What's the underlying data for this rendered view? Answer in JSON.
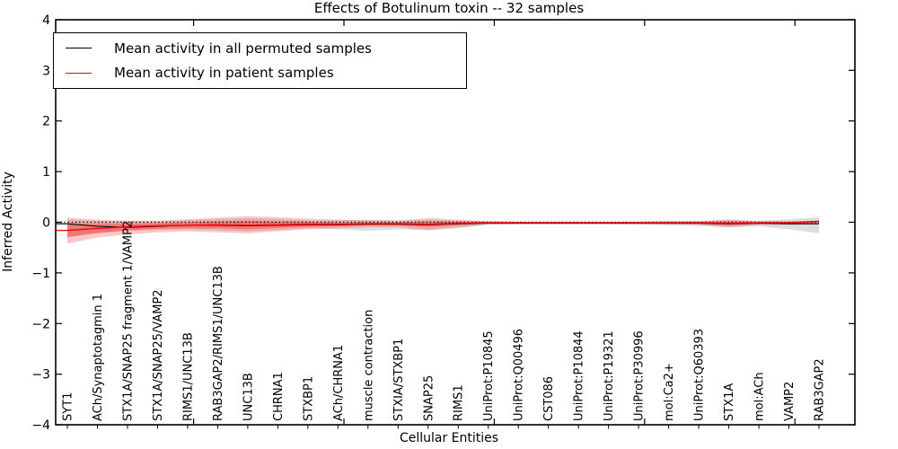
{
  "title": "Effects of Botulinum toxin -- 32 samples",
  "legend": {
    "items": [
      {
        "label": "Mean activity in all permuted samples",
        "color": "#000000"
      },
      {
        "label": "Mean activity in patient samples",
        "color": "#ff0000"
      }
    ]
  },
  "chart_data": {
    "type": "line",
    "title": "Effects of Botulinum toxin -- 32 samples",
    "xlabel": "Cellular Entities",
    "ylabel": "Inferred Activity",
    "ylim": [
      -4,
      4
    ],
    "grid": false,
    "legend_position": "upper left",
    "ytick_labels": [
      "4",
      "3",
      "2",
      "1",
      "0",
      "−1",
      "−2",
      "−3",
      "−4"
    ],
    "ytick_values": [
      4,
      3,
      2,
      1,
      0,
      -1,
      -2,
      -3,
      -4
    ],
    "xticks_major_positions": [
      4.2,
      9.2,
      14.2,
      19.2,
      24.2
    ],
    "zero_reference_line": 0,
    "categories": [
      "SYT1",
      "ACh/Synaptotagmin 1",
      "STX1A/SNAP25 fragment 1/VAMP2",
      "STX1A/SNAP25/VAMP2",
      "RIMS1/UNC13B",
      "RAB3GAP2/RIMS1/UNC13B",
      "UNC13B",
      "CHRNA1",
      "STXBP1",
      "ACh/CHRNA1",
      "muscle contraction",
      "STXIA/STXBP1",
      "SNAP25",
      "RIMS1",
      "UniProt:P10845",
      "UniProt:Q00496",
      "CST086",
      "UniProt:P10844",
      "UniProt:P19321",
      "UniProt:P30996",
      "mol:Ca2+",
      "UniProt:Q60393",
      "STX1A",
      "mol:ACh",
      "VAMP2",
      "RAB3GAP2"
    ],
    "series": [
      {
        "name": "Mean activity in all permuted samples",
        "color": "#000000",
        "width": 1.1,
        "values": [
          -0.03,
          -0.08,
          -0.1,
          -0.08,
          -0.06,
          -0.06,
          -0.07,
          -0.06,
          -0.05,
          -0.05,
          -0.04,
          -0.04,
          -0.05,
          -0.03,
          -0.02,
          -0.02,
          -0.02,
          -0.02,
          -0.02,
          -0.02,
          -0.02,
          -0.02,
          -0.03,
          -0.02,
          -0.03,
          -0.03
        ]
      },
      {
        "name": "Mean activity in patient samples",
        "color": "#ff0000",
        "width": 1.4,
        "values": [
          -0.16,
          -0.12,
          -0.09,
          -0.07,
          -0.06,
          -0.05,
          -0.06,
          -0.05,
          -0.04,
          -0.04,
          -0.03,
          -0.03,
          -0.04,
          -0.02,
          -0.01,
          -0.01,
          -0.01,
          -0.01,
          -0.01,
          -0.01,
          -0.01,
          -0.01,
          -0.02,
          -0.01,
          -0.01,
          0.02
        ]
      }
    ],
    "bands": [
      {
        "name": "permuted-range",
        "color": "#888888",
        "opacity": 0.28,
        "upper": [
          0.05,
          0.03,
          0.02,
          0.02,
          0.04,
          0.06,
          0.08,
          0.06,
          0.04,
          0.04,
          0.05,
          0.04,
          0.05,
          0.04,
          0.02,
          0.01,
          0.01,
          0.01,
          0.01,
          0.01,
          0.02,
          0.03,
          0.04,
          0.03,
          0.06,
          0.1
        ],
        "lower": [
          -0.3,
          -0.22,
          -0.17,
          -0.15,
          -0.14,
          -0.16,
          -0.18,
          -0.15,
          -0.12,
          -0.14,
          -0.17,
          -0.14,
          -0.16,
          -0.12,
          -0.05,
          -0.04,
          -0.04,
          -0.04,
          -0.04,
          -0.05,
          -0.06,
          -0.07,
          -0.1,
          -0.08,
          -0.14,
          -0.22
        ]
      },
      {
        "name": "patient-range-outer",
        "color": "#ff0000",
        "opacity": 0.22,
        "upper": [
          0.09,
          0.05,
          0.03,
          0.03,
          0.06,
          0.09,
          0.12,
          0.1,
          0.07,
          0.05,
          0.04,
          0.03,
          0.08,
          0.05,
          0.02,
          0.01,
          0.01,
          0.01,
          0.01,
          0.01,
          0.02,
          0.02,
          0.06,
          0.02,
          0.02,
          0.03
        ],
        "lower": [
          -0.42,
          -0.3,
          -0.24,
          -0.2,
          -0.18,
          -0.2,
          -0.22,
          -0.18,
          -0.14,
          -0.12,
          -0.1,
          -0.1,
          -0.15,
          -0.1,
          -0.04,
          -0.03,
          -0.03,
          -0.03,
          -0.03,
          -0.03,
          -0.04,
          -0.05,
          -0.1,
          -0.05,
          -0.05,
          -0.04
        ]
      },
      {
        "name": "patient-range-inner",
        "color": "#ff0000",
        "opacity": 0.3,
        "upper": [
          -0.03,
          -0.03,
          -0.03,
          -0.02,
          0.0,
          0.02,
          0.03,
          0.02,
          0.01,
          0.0,
          0.0,
          0.0,
          0.02,
          0.01,
          0.0,
          0.0,
          0.0,
          0.0,
          0.0,
          0.0,
          0.0,
          0.0,
          0.02,
          0.0,
          0.0,
          0.02
        ],
        "lower": [
          -0.29,
          -0.21,
          -0.16,
          -0.13,
          -0.12,
          -0.12,
          -0.14,
          -0.11,
          -0.09,
          -0.08,
          -0.06,
          -0.06,
          -0.09,
          -0.06,
          -0.02,
          -0.02,
          -0.02,
          -0.02,
          -0.02,
          -0.02,
          -0.02,
          -0.03,
          -0.06,
          -0.03,
          -0.03,
          0.0
        ]
      }
    ]
  }
}
